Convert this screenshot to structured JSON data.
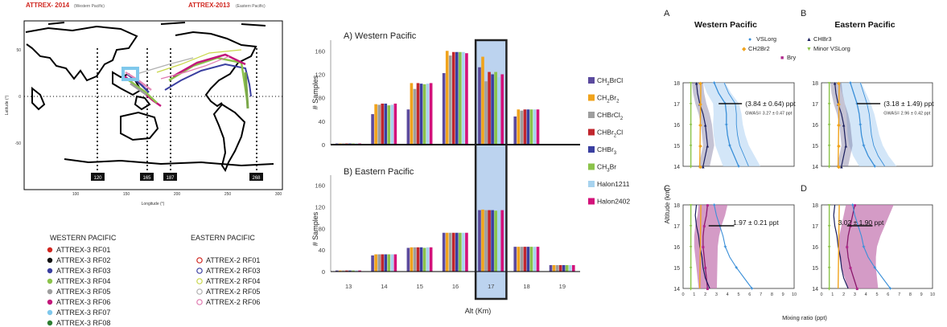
{
  "map": {
    "title_left": "ATTREX- 2014",
    "title_left_sub": "(Western Pacific)",
    "title_right": "ATTREX-2013",
    "title_right_sub": "(Eastern Pacific)",
    "ylabel": "Latitude (°)",
    "xlabel": "Longitude (°)",
    "xticks": [
      "100",
      "150",
      "200",
      "250",
      "300"
    ],
    "yticks": [
      "50",
      "0",
      "-50"
    ],
    "lon_markers": [
      "120",
      "165",
      "187",
      "268"
    ],
    "title_color": "#d0261f"
  },
  "legend_west": {
    "title": "WESTERN PACIFIC",
    "items": [
      {
        "label": "ATTREX-3 RF01",
        "color": "#d0261f"
      },
      {
        "label": "ATTREX-3 RF02",
        "color": "#111111"
      },
      {
        "label": "ATTREX-3 RF03",
        "color": "#3a3fa0"
      },
      {
        "label": "ATTREX-3 RF04",
        "color": "#8bc34a"
      },
      {
        "label": "ATTREX-3 RF05",
        "color": "#9e9e9e"
      },
      {
        "label": "ATTREX-3 RF06",
        "color": "#c2187a"
      },
      {
        "label": "ATTREX-3 RF07",
        "color": "#7fc8ec"
      },
      {
        "label": "ATTREX-3 RF08",
        "color": "#2e7d32"
      }
    ]
  },
  "legend_east": {
    "title": "EASTERN PACIFIC",
    "items": [
      {
        "label": "ATTREX-2 RF01",
        "color": "#d0261f"
      },
      {
        "label": "ATTREX-2 RF03",
        "color": "#3a3fa0"
      },
      {
        "label": "ATTREX-2 RF04",
        "color": "#c8d64a"
      },
      {
        "label": "ATTREX-2 RF05",
        "color": "#b0b0b0"
      },
      {
        "label": "ATTREX-2 RF06",
        "color": "#e07ab0"
      }
    ]
  },
  "chart_data": [
    {
      "type": "bar",
      "title": "A) Western Pacific",
      "ylabel": "# Samples",
      "ylim": [
        0,
        170
      ],
      "yticks": [
        0,
        40,
        80,
        120,
        160
      ],
      "categories": [
        "13",
        "14",
        "15",
        "16",
        "17",
        "18",
        "19"
      ],
      "highlight_category": "17",
      "series": [
        {
          "name": "CH2BrCl",
          "color": "#5b4a9e",
          "values": [
            2,
            52,
            60,
            122,
            132,
            48,
            0
          ]
        },
        {
          "name": "CH2Br2",
          "color": "#f0a31c",
          "values": [
            2,
            69,
            105,
            160,
            150,
            60,
            0
          ]
        },
        {
          "name": "CHBrCl2",
          "color": "#9e9e9e",
          "values": [
            2,
            68,
            95,
            152,
            108,
            58,
            0
          ]
        },
        {
          "name": "CHBr2Cl",
          "color": "#c0262d",
          "values": [
            2,
            70,
            105,
            158,
            124,
            60,
            0
          ]
        },
        {
          "name": "CHBr3",
          "color": "#3a3fa0",
          "values": [
            2,
            70,
            104,
            158,
            120,
            60,
            0
          ]
        },
        {
          "name": "CH3Br",
          "color": "#8bc34a",
          "values": [
            2,
            67,
            103,
            158,
            124,
            60,
            0
          ]
        },
        {
          "name": "Halon1211",
          "color": "#a7d3ef",
          "values": [
            2,
            68,
            104,
            158,
            115,
            60,
            0
          ]
        },
        {
          "name": "Halon2402",
          "color": "#d3127a",
          "values": [
            2,
            70,
            105,
            156,
            120,
            60,
            0
          ]
        }
      ]
    },
    {
      "type": "bar",
      "title": "B) Eastern Pacific",
      "xlabel": "Alt (Km)",
      "ylabel": "# Samples",
      "ylim": [
        0,
        170
      ],
      "yticks": [
        0,
        40,
        80,
        120,
        160
      ],
      "categories": [
        "13",
        "14",
        "15",
        "16",
        "17",
        "18",
        "19"
      ],
      "highlight_category": "17",
      "series": [
        {
          "name": "CH2BrCl",
          "values": [
            2,
            30,
            44,
            72,
            114,
            46,
            12
          ]
        },
        {
          "name": "CH2Br2",
          "values": [
            2,
            32,
            45,
            72,
            115,
            46,
            12
          ]
        },
        {
          "name": "CHBrCl2",
          "values": [
            2,
            32,
            45,
            72,
            114,
            46,
            12
          ]
        },
        {
          "name": "CHBr2Cl",
          "values": [
            2,
            32,
            45,
            72,
            114,
            46,
            12
          ]
        },
        {
          "name": "CHBr3",
          "values": [
            2,
            32,
            45,
            72,
            114,
            46,
            12
          ]
        },
        {
          "name": "CH3Br",
          "values": [
            2,
            32,
            44,
            72,
            113,
            46,
            12
          ]
        },
        {
          "name": "Halon1211",
          "values": [
            2,
            32,
            45,
            72,
            114,
            46,
            12
          ]
        },
        {
          "name": "Halon2402",
          "values": [
            2,
            32,
            45,
            72,
            114,
            46,
            12
          ]
        }
      ]
    },
    {
      "type": "line",
      "panel": "A",
      "title": "Western Pacific",
      "annotation": "(3.84 ± 0.64) ppt",
      "annotation2": "GWAS= 3.27 ± 0.47 ppt",
      "ylim": [
        14,
        18
      ],
      "xlim": [
        0,
        10
      ]
    },
    {
      "type": "line",
      "panel": "B",
      "title": "Eastern Pacific",
      "annotation": "(3.18 ± 1.49) ppt",
      "annotation2": "GWAS= 2.96 ± 0.42 ppt",
      "ylim": [
        14,
        18
      ],
      "xlim": [
        0,
        10
      ]
    },
    {
      "type": "line",
      "panel": "C",
      "annotation": "1.97 ± 0.21 ppt",
      "ylim": [
        14,
        18
      ],
      "xlim": [
        0,
        10
      ]
    },
    {
      "type": "line",
      "panel": "D",
      "annotation": "3.02 ± 1.90 ppt",
      "ylim": [
        14,
        18
      ],
      "xlim": [
        0,
        10
      ]
    }
  ],
  "profiles": {
    "ylabel": "Altitude (km)",
    "xlabel": "Mixing ratio (ppt)",
    "yticks": [
      "18",
      "17",
      "16",
      "15",
      "14"
    ],
    "xticks": [
      "0",
      "1",
      "2",
      "3",
      "4",
      "5",
      "6",
      "7",
      "8",
      "9",
      "10"
    ],
    "legend": [
      {
        "label": "VSLorg",
        "color": "#3a8fd8",
        "symbol": "●"
      },
      {
        "label": "CHBr3",
        "color": "#1b1f5e",
        "symbol": "▲"
      },
      {
        "label": "CH2Br2",
        "color": "#f0a31c",
        "symbol": "◆"
      },
      {
        "label": "Minor VSLorg",
        "color": "#8bc34a",
        "symbol": "▼"
      },
      {
        "label": "Bry",
        "color": "#b0278c",
        "symbol": "■"
      }
    ]
  }
}
